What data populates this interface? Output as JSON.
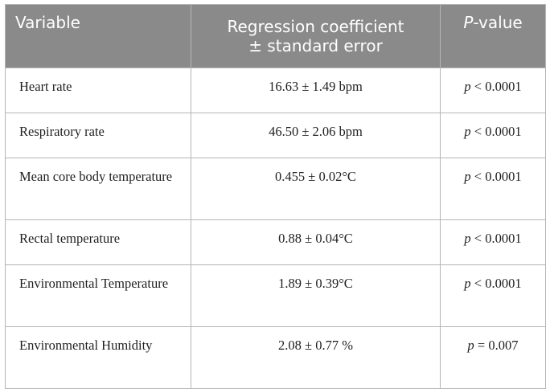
{
  "table": {
    "headers": {
      "variable": "Variable",
      "coef_line1": "Regression coefficient",
      "coef_line2": "± standard error",
      "p_italic": "P",
      "p_rest": "-value"
    },
    "rows": [
      {
        "variable": "Heart rate",
        "coef": "16.63 ± 1.49 bpm",
        "p_sym": "p",
        "p_rest": " < 0.0001"
      },
      {
        "variable": "Respiratory rate",
        "coef": "46.50 ± 2.06 bpm",
        "p_sym": "p",
        "p_rest": " < 0.0001"
      },
      {
        "variable": "Mean core body temperature",
        "coef": "0.455 ± 0.02°C",
        "p_sym": "p",
        "p_rest": " < 0.0001"
      },
      {
        "variable": "Rectal temperature",
        "coef": "0.88 ± 0.04°C",
        "p_sym": "p",
        "p_rest": " < 0.0001"
      },
      {
        "variable": "Environmental Temperature",
        "coef": "1.89 ± 0.39°C",
        "p_sym": "p",
        "p_rest": " < 0.0001"
      },
      {
        "variable": "Environmental Humidity",
        "coef": "2.08 ± 0.77 %",
        "p_sym": "p",
        "p_rest": " = 0.007"
      }
    ]
  }
}
